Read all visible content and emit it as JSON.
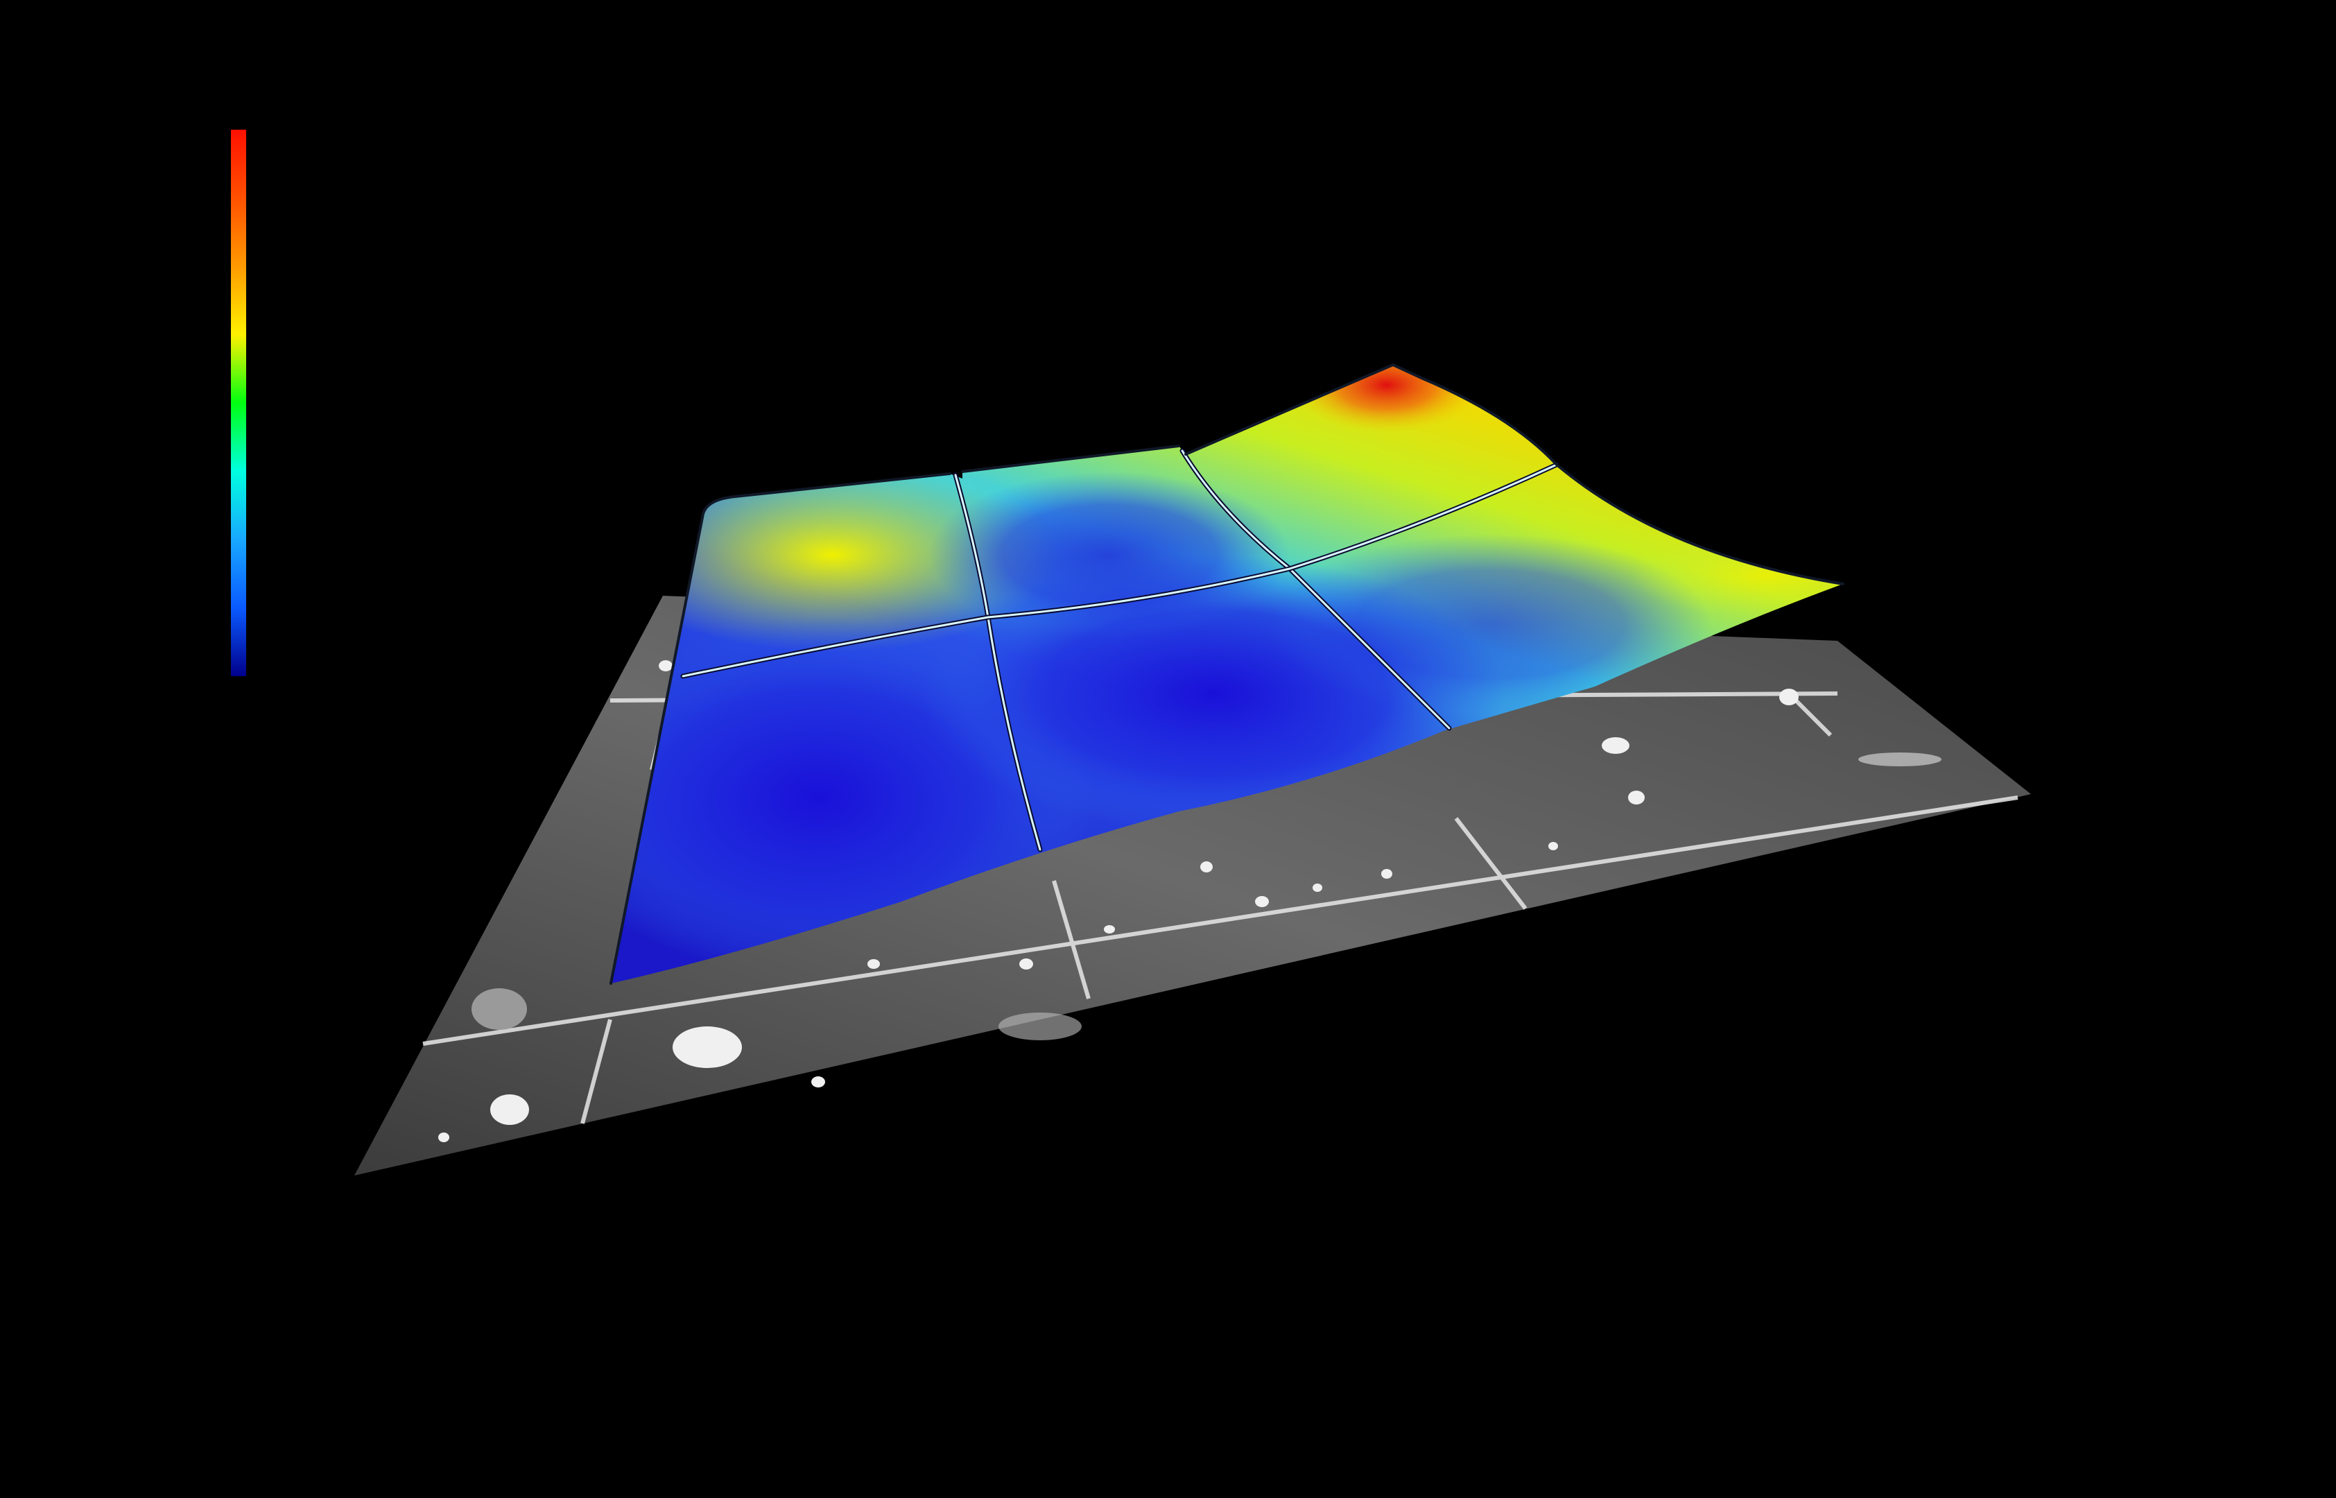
{
  "colorbar": {
    "colormap": "jet",
    "stops": [
      "#00008c",
      "#0a5aff",
      "#18a8ff",
      "#00ffe0",
      "#00ff10",
      "#fff200",
      "#ff9a00",
      "#ff5000",
      "#ff1000"
    ]
  },
  "surface": {
    "panels": "3x2",
    "low_color": "#1a16d8",
    "mid_color": "#40d0e8",
    "high_color": "#f0f000",
    "peak_color": "#e01818"
  },
  "substrate": {
    "tone": "grayscale",
    "base_color": "#5a5a5a",
    "grid_color": "#e8e8e8"
  }
}
